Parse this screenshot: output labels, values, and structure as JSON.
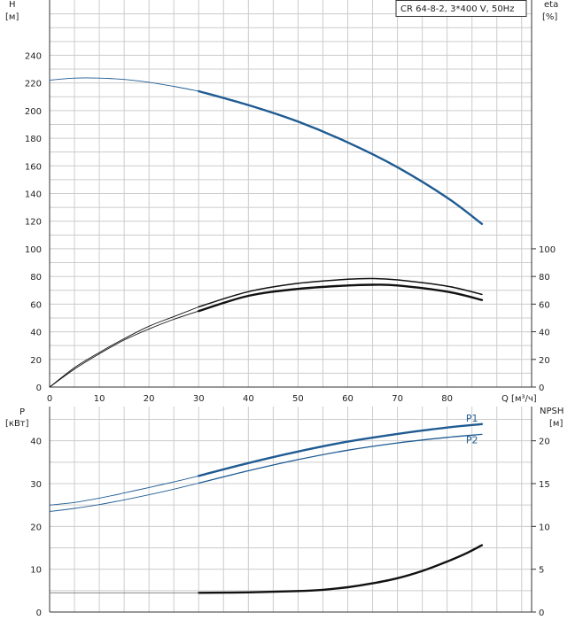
{
  "chart_data": [
    {
      "type": "line",
      "panel": "top",
      "title": "CR 64-8-2, 3*400 V, 50Hz",
      "xlabel": "Q [м³/ч]",
      "xlim": [
        0,
        97
      ],
      "x_ticks": [
        "0",
        "10",
        "20",
        "30",
        "40",
        "50",
        "60",
        "70",
        "80"
      ],
      "x_tick_values": [
        0,
        10,
        20,
        30,
        40,
        50,
        60,
        70,
        80
      ],
      "left_axis": {
        "label": "H",
        "unit": "[м]",
        "lim": [
          0,
          280
        ],
        "ticks": [
          "0",
          "20",
          "40",
          "60",
          "80",
          "100",
          "120",
          "140",
          "160",
          "180",
          "200",
          "220",
          "240"
        ],
        "tick_values": [
          0,
          20,
          40,
          60,
          80,
          100,
          120,
          140,
          160,
          180,
          200,
          220,
          240
        ]
      },
      "right_axis": {
        "label": "eta",
        "unit": "[%]",
        "lim": [
          0,
          280
        ],
        "ticks": [
          "0",
          "20",
          "40",
          "60",
          "80",
          "100"
        ],
        "tick_values": [
          0,
          20,
          40,
          60,
          80,
          100
        ]
      },
      "grid": true,
      "series": [
        {
          "name": "",
          "axis": "left",
          "color": "#1f5b92",
          "width": 2.4,
          "x": [
            30,
            40,
            50,
            60,
            70,
            80,
            87
          ],
          "y": [
            214,
            204,
            192,
            177,
            159,
            137,
            118
          ]
        },
        {
          "name": "",
          "axis": "left",
          "color": "#1f5b92",
          "width": 0.9,
          "x": [
            0,
            5,
            10,
            15,
            20,
            25,
            30
          ],
          "y": [
            222,
            223.5,
            223.5,
            222.5,
            220.5,
            217.5,
            214
          ]
        },
        {
          "name": "",
          "axis": "right",
          "color": "#111111",
          "width": 1.5,
          "x": [
            30,
            40,
            50,
            60,
            65,
            70,
            80,
            87
          ],
          "y": [
            58,
            69,
            75,
            78,
            78.5,
            77.5,
            73,
            67
          ]
        },
        {
          "name": "",
          "axis": "right",
          "color": "#111111",
          "width": 0.9,
          "x": [
            0,
            5,
            10,
            15,
            20,
            25,
            30
          ],
          "y": [
            0,
            14,
            25,
            35,
            44,
            51,
            58
          ]
        },
        {
          "name": "",
          "axis": "right",
          "color": "#111111",
          "width": 2.4,
          "x": [
            30,
            40,
            50,
            60,
            65,
            70,
            80,
            87
          ],
          "y": [
            55,
            66,
            71,
            73.5,
            74,
            73.5,
            69,
            63
          ]
        },
        {
          "name": "",
          "axis": "right",
          "color": "#111111",
          "width": 0.9,
          "x": [
            0,
            5,
            10,
            15,
            20,
            25,
            30
          ],
          "y": [
            0,
            13,
            24,
            34,
            42,
            49,
            55
          ]
        }
      ]
    },
    {
      "type": "line",
      "panel": "bottom",
      "xlim": [
        0,
        97
      ],
      "left_axis": {
        "label": "P",
        "unit": "[кВт]",
        "lim": [
          0,
          48
        ],
        "ticks": [
          "0",
          "10",
          "20",
          "30",
          "40"
        ],
        "tick_values": [
          0,
          10,
          20,
          30,
          40
        ]
      },
      "right_axis": {
        "label": "NPSH",
        "unit": "[м]",
        "lim": [
          0,
          24
        ],
        "ticks": [
          "0",
          "5",
          "10",
          "15",
          "20"
        ],
        "tick_values": [
          0,
          5,
          10,
          15,
          20
        ]
      },
      "grid": true,
      "series": [
        {
          "name": "P1",
          "axis": "left",
          "color": "#1f5b92",
          "width": 2.4,
          "x": [
            30,
            40,
            50,
            60,
            70,
            80,
            87
          ],
          "y": [
            31.8,
            34.8,
            37.5,
            39.8,
            41.6,
            43.1,
            43.9
          ]
        },
        {
          "name": "",
          "axis": "left",
          "color": "#1f5b92",
          "width": 0.9,
          "x": [
            0,
            5,
            10,
            15,
            20,
            25,
            30
          ],
          "y": [
            25,
            25.6,
            26.6,
            27.8,
            29.1,
            30.4,
            31.8
          ]
        },
        {
          "name": "P2",
          "axis": "left",
          "color": "#1f5b92",
          "width": 1.3,
          "x": [
            30,
            40,
            50,
            60,
            70,
            80,
            87
          ],
          "y": [
            30.1,
            33.0,
            35.6,
            37.8,
            39.5,
            40.8,
            41.5
          ]
        },
        {
          "name": "",
          "axis": "left",
          "color": "#1f5b92",
          "width": 0.9,
          "x": [
            0,
            5,
            10,
            15,
            20,
            25,
            30
          ],
          "y": [
            23.5,
            24.2,
            25.1,
            26.2,
            27.4,
            28.7,
            30.1
          ]
        },
        {
          "name": "",
          "axis": "right",
          "color": "#111111",
          "width": 2.4,
          "x": [
            30,
            40,
            50,
            55,
            60,
            65,
            70,
            75,
            80,
            84,
            87
          ],
          "y": [
            2.25,
            2.3,
            2.45,
            2.6,
            2.9,
            3.35,
            3.95,
            4.8,
            5.9,
            6.9,
            7.8
          ]
        },
        {
          "name": "",
          "axis": "right",
          "color": "#777777",
          "width": 0.9,
          "x": [
            0,
            30
          ],
          "y": [
            2.25,
            2.25
          ]
        }
      ]
    }
  ]
}
